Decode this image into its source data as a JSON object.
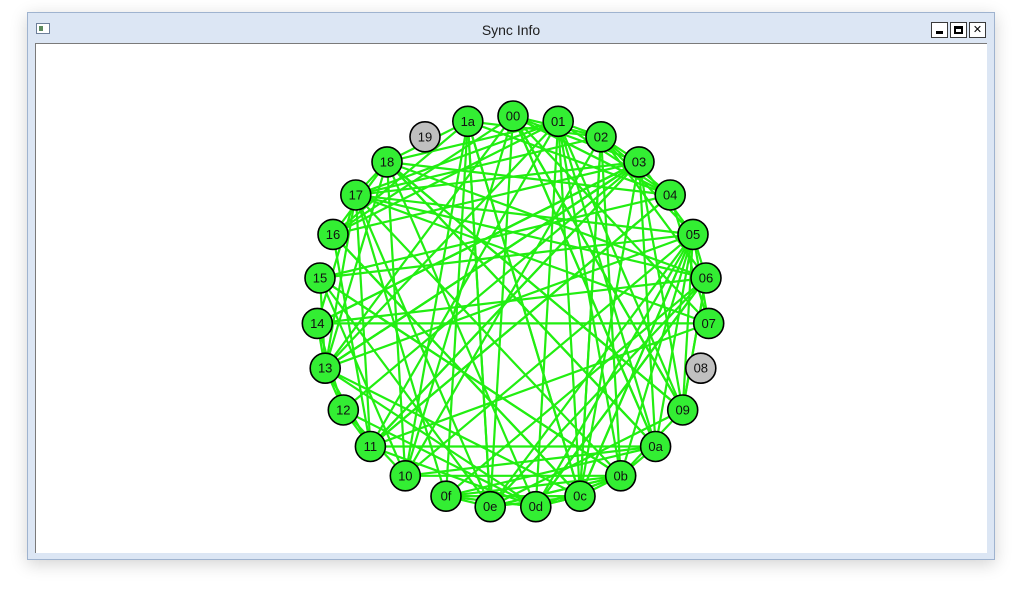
{
  "window": {
    "title": "Sync Info",
    "minimize_label": "",
    "maximize_label": "",
    "close_label": "✕"
  },
  "graph": {
    "active_color": "#33ee33",
    "inactive_color": "#c0c0c0",
    "edge_color": "#22ee11",
    "nodes": [
      {
        "id": "00",
        "active": true
      },
      {
        "id": "01",
        "active": true
      },
      {
        "id": "02",
        "active": true
      },
      {
        "id": "03",
        "active": true
      },
      {
        "id": "04",
        "active": true
      },
      {
        "id": "05",
        "active": true
      },
      {
        "id": "06",
        "active": true
      },
      {
        "id": "07",
        "active": true
      },
      {
        "id": "08",
        "active": false
      },
      {
        "id": "09",
        "active": true
      },
      {
        "id": "0a",
        "active": true
      },
      {
        "id": "0b",
        "active": true
      },
      {
        "id": "0c",
        "active": true
      },
      {
        "id": "0d",
        "active": true
      },
      {
        "id": "0e",
        "active": true
      },
      {
        "id": "0f",
        "active": true
      },
      {
        "id": "10",
        "active": true
      },
      {
        "id": "11",
        "active": true
      },
      {
        "id": "12",
        "active": true
      },
      {
        "id": "13",
        "active": true
      },
      {
        "id": "14",
        "active": true
      },
      {
        "id": "15",
        "active": true
      },
      {
        "id": "16",
        "active": true
      },
      {
        "id": "17",
        "active": true
      },
      {
        "id": "18",
        "active": true
      },
      {
        "id": "19",
        "active": false
      },
      {
        "id": "1a",
        "active": true
      }
    ]
  }
}
